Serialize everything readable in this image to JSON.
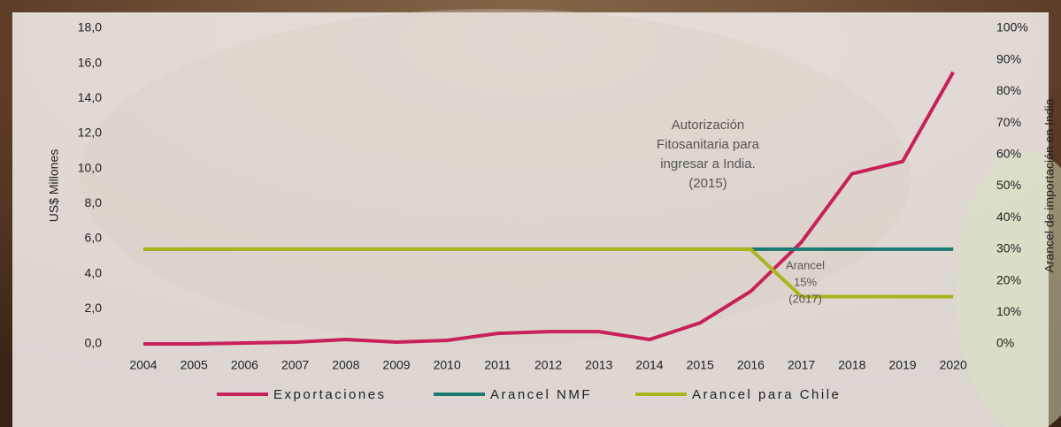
{
  "chart_data": {
    "type": "line",
    "y_axis_title": "US$ Millones",
    "y2_axis_title": "Arancel de importación en India",
    "categories": [
      "2004",
      "2005",
      "2006",
      "2007",
      "2008",
      "2009",
      "2010",
      "2011",
      "2012",
      "2013",
      "2014",
      "2015",
      "2016",
      "2017",
      "2018",
      "2019",
      "2020"
    ],
    "series": [
      {
        "name": "Exportaciones",
        "color": "#c8215a",
        "values": [
          0.0,
          0.0,
          0.05,
          0.1,
          0.25,
          0.1,
          0.2,
          0.6,
          0.7,
          0.7,
          0.25,
          1.2,
          3.0,
          5.8,
          9.7,
          10.4,
          15.5
        ]
      },
      {
        "name": "Arancel NMF",
        "color": "#1b7a70",
        "axis": "y2",
        "values": [
          30,
          30,
          30,
          30,
          30,
          30,
          30,
          30,
          30,
          30,
          30,
          30,
          30,
          30,
          30,
          30,
          30
        ]
      },
      {
        "name": "Arancel para Chile",
        "color": "#a9b51f",
        "axis": "y2",
        "values": [
          30,
          30,
          30,
          30,
          30,
          30,
          30,
          30,
          30,
          30,
          30,
          30,
          30,
          15,
          15,
          15,
          15
        ]
      }
    ],
    "ylim": [
      0,
      18
    ],
    "yticks": [
      {
        "value": 0,
        "label": "0,0"
      },
      {
        "value": 2,
        "label": "2,0"
      },
      {
        "value": 4,
        "label": "4,0"
      },
      {
        "value": 6,
        "label": "6,0"
      },
      {
        "value": 8,
        "label": "8,0"
      },
      {
        "value": 10,
        "label": "10,0"
      },
      {
        "value": 12,
        "label": "12,0"
      },
      {
        "value": 14,
        "label": "14,0"
      },
      {
        "value": 16,
        "label": "16,0"
      },
      {
        "value": 18,
        "label": "18,0"
      }
    ],
    "y2lim": [
      0,
      100
    ],
    "y2ticks": [
      {
        "value": 0,
        "label": "0%"
      },
      {
        "value": 10,
        "label": "10%"
      },
      {
        "value": 20,
        "label": "20%"
      },
      {
        "value": 30,
        "label": "30%"
      },
      {
        "value": 40,
        "label": "40%"
      },
      {
        "value": 50,
        "label": "50%"
      },
      {
        "value": 60,
        "label": "60%"
      },
      {
        "value": 70,
        "label": "70%"
      },
      {
        "value": 80,
        "label": "80%"
      },
      {
        "value": 90,
        "label": "90%"
      },
      {
        "value": 100,
        "label": "100%"
      }
    ],
    "annotations": [
      {
        "lines": [
          "Autorización",
          "Fitosanitaria para",
          "ingresar a India.",
          "(2015)"
        ]
      },
      {
        "lines": [
          "Arancel",
          "15%",
          "(2017)"
        ]
      }
    ],
    "legend": "bottom"
  }
}
